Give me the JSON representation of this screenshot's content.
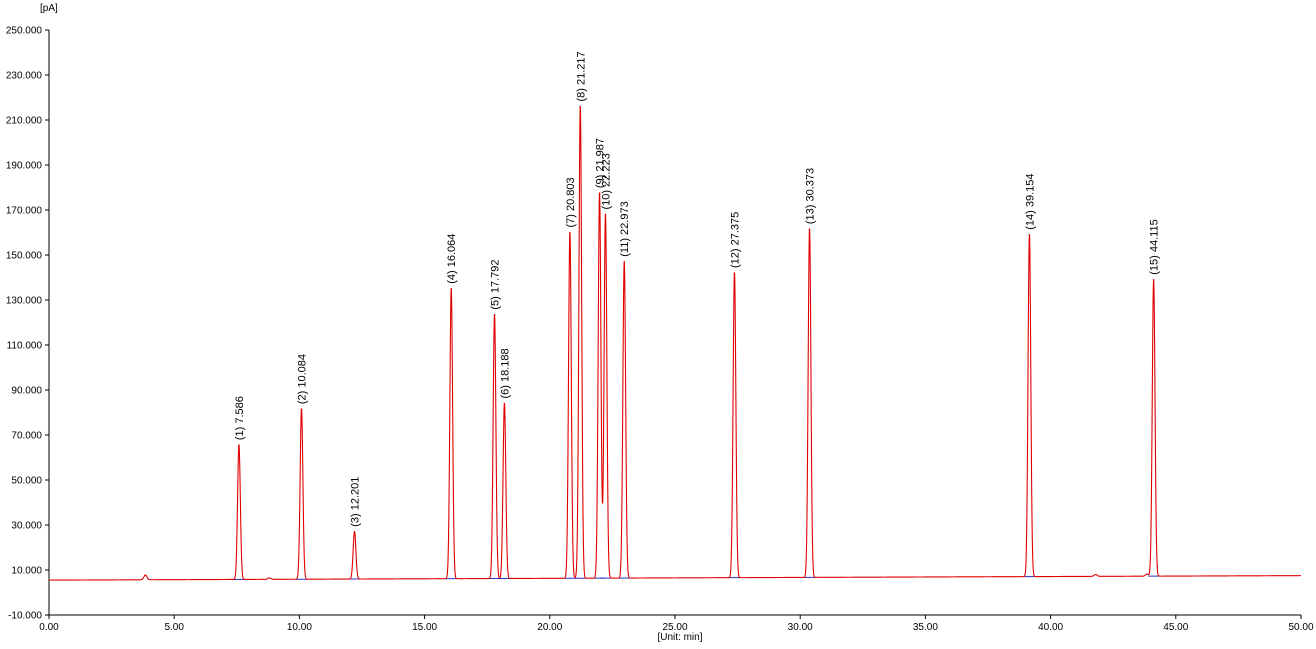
{
  "chart_data": {
    "type": "line",
    "y_unit_label": "[pA]",
    "x_unit_label": "[Unit: min]",
    "xlim": [
      0,
      50
    ],
    "ylim": [
      -10,
      250
    ],
    "x_ticks": [
      0,
      5,
      10,
      15,
      20,
      25,
      30,
      35,
      40,
      45,
      50
    ],
    "x_tick_labels": [
      "0.00",
      "5.00",
      "10.00",
      "15.00",
      "20.00",
      "25.00",
      "30.00",
      "35.00",
      "40.00",
      "45.00",
      "50.00"
    ],
    "y_ticks": [
      -10,
      10,
      30,
      50,
      70,
      90,
      110,
      130,
      150,
      170,
      190,
      210,
      230,
      250
    ],
    "y_tick_labels": [
      "-10.000",
      "10.000",
      "30.000",
      "50.000",
      "70.000",
      "90.000",
      "110.000",
      "130.000",
      "150.000",
      "170.000",
      "190.000",
      "210.000",
      "230.000",
      "250.000"
    ],
    "grid": false,
    "baseline": {
      "start": 5.5,
      "end": 7.5
    },
    "series_color": "#e00000",
    "baseline_color": "#3030c0",
    "peaks": [
      {
        "label": "(1) 7.586",
        "x": 7.586,
        "y": 65.5
      },
      {
        "label": "(2) 10.084",
        "x": 10.084,
        "y": 81.5
      },
      {
        "label": "(3) 12.201",
        "x": 12.201,
        "y": 27.0
      },
      {
        "label": "(4) 16.064",
        "x": 16.064,
        "y": 135.0
      },
      {
        "label": "(5) 17.792",
        "x": 17.792,
        "y": 123.5
      },
      {
        "label": "(6) 18.188",
        "x": 18.188,
        "y": 84.0
      },
      {
        "label": "(7) 20.803",
        "x": 20.803,
        "y": 160.0
      },
      {
        "label": "(8) 21.217",
        "x": 21.217,
        "y": 216.0
      },
      {
        "label": "(9) 21.987",
        "x": 21.987,
        "y": 177.5
      },
      {
        "label": "(10) 22.223",
        "x": 22.223,
        "y": 168.0
      },
      {
        "label": "(11) 22.973",
        "x": 22.973,
        "y": 147.0
      },
      {
        "label": "(12) 27.375",
        "x": 27.375,
        "y": 142.0
      },
      {
        "label": "(13) 30.373",
        "x": 30.373,
        "y": 161.5
      },
      {
        "label": "(14) 39.154",
        "x": 39.154,
        "y": 159.0
      },
      {
        "label": "(15) 44.115",
        "x": 44.115,
        "y": 139.0
      }
    ],
    "minor_bumps": [
      {
        "x": 3.85,
        "y": 7.8
      },
      {
        "x": 8.8,
        "y": 6.5
      },
      {
        "x": 41.8,
        "y": 8.0
      },
      {
        "x": 43.85,
        "y": 8.2
      }
    ]
  }
}
